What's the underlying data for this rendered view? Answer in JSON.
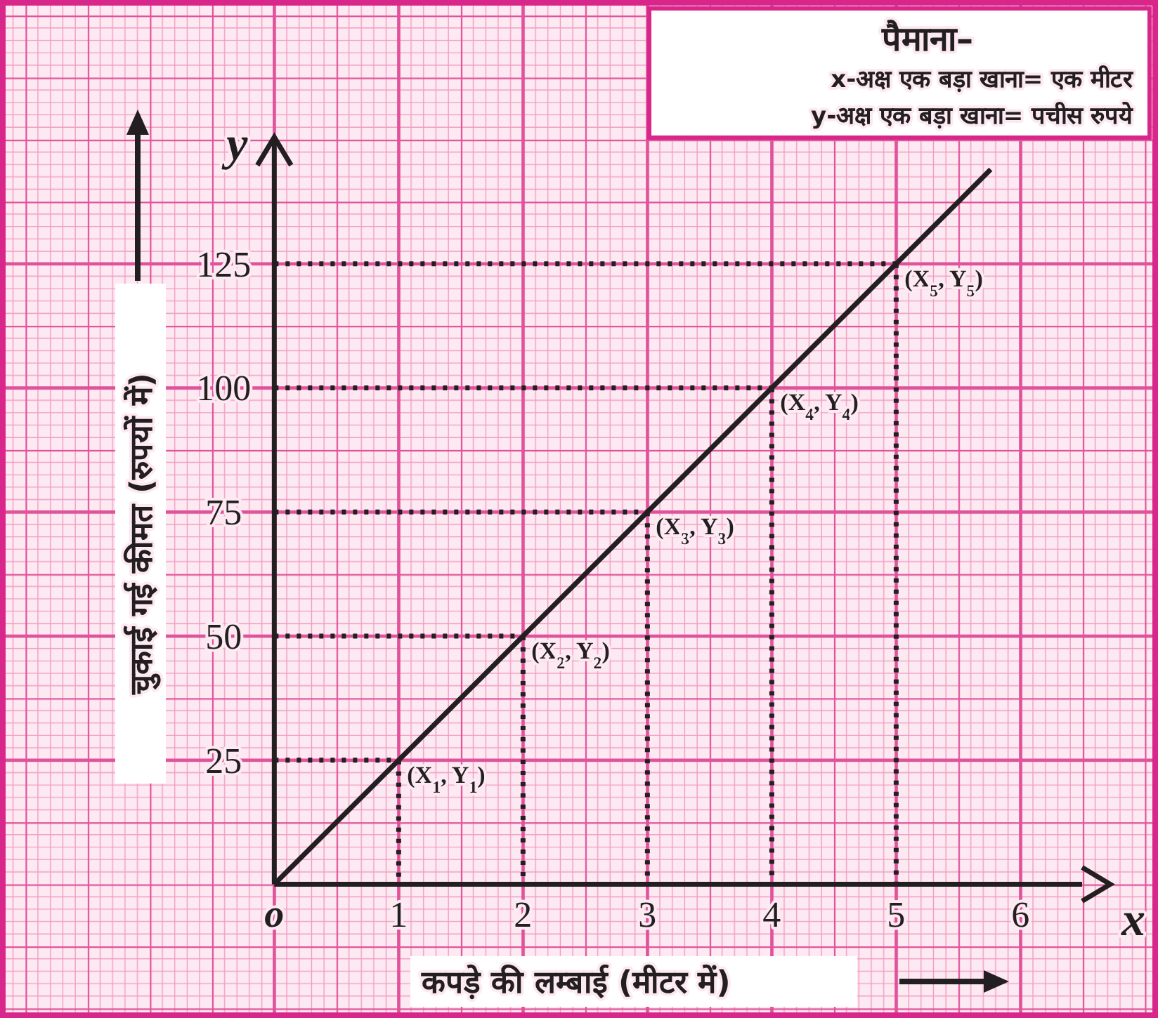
{
  "chart_data": {
    "type": "line",
    "title": "पैमाना–",
    "xlabel": "कपड़े की लम्बाई (मीटर में)",
    "ylabel": "चुकाई गई कीमत (रुपयों में)",
    "annotations": [
      "x-अक्ष   एक बड़ा खाना= एक मीटर",
      "y-अक्ष   एक बड़ा खाना= पचीस रुपये",
      "x",
      "y",
      {
        "text": "(X$_{1}$, Y$_{1}$)",
        "x": 1,
        "y": 25
      },
      {
        "text": "(X$_{2}$, Y$_{2}$)",
        "x": 2,
        "y": 50
      },
      {
        "text": "(X$_{3}$, Y$_{3}$)",
        "x": 3,
        "y": 75
      },
      {
        "text": "(X$_{4}$, Y$_{4}$)",
        "x": 4,
        "y": 100
      },
      {
        "text": "(X$_{5}$, Y$_{5}$)",
        "x": 5,
        "y": 125
      }
    ],
    "series": [
      {
        "color": "#231f20",
        "x": [
          0,
          1,
          2,
          3,
          4,
          5,
          5.76
        ],
        "values": [
          0,
          25,
          50,
          75,
          100,
          125,
          144
        ]
      }
    ],
    "xlim": [
      -2.16,
      7.06
    ],
    "ylim": [
      -25.8,
      177
    ],
    "xticks": [
      {
        "value": 0,
        "label": "o"
      },
      1,
      2,
      3,
      4,
      5,
      6
    ],
    "yticks": [
      25,
      50,
      75,
      100,
      125
    ],
    "grid": true,
    "marker": "none",
    "line_style": "solid"
  }
}
